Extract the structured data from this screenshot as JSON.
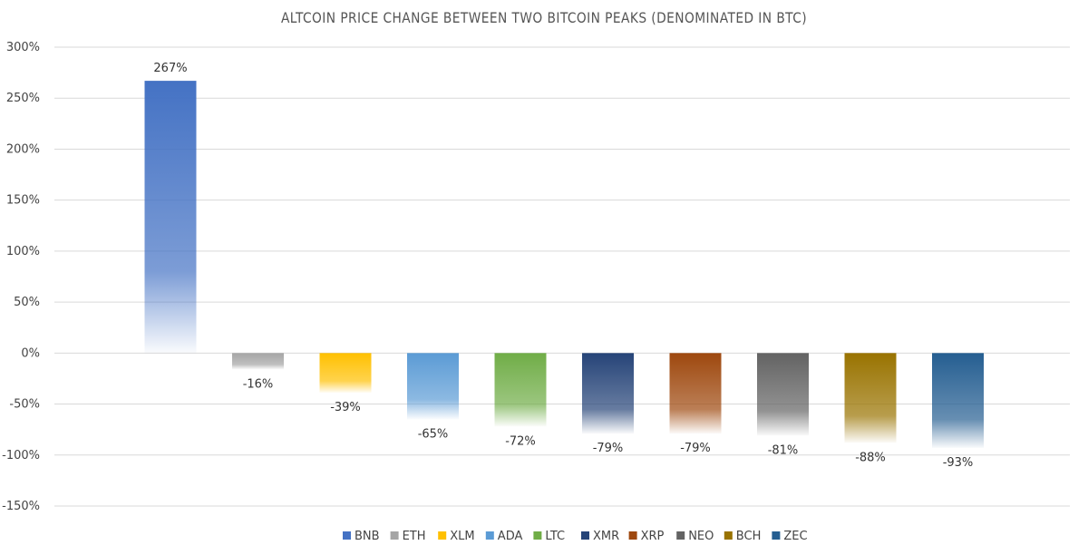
{
  "chart_data": {
    "type": "bar",
    "title": "ALTCOIN PRICE CHANGE BETWEEN TWO BITCOIN PEAKS (DENOMINATED IN BTC)",
    "categories": [
      "BNB",
      "ETH",
      "XLM",
      "ADA",
      "LTC",
      "XMR",
      "XRP",
      "NEO",
      "BCH",
      "ZEC"
    ],
    "values": [
      267,
      -16,
      -39,
      -65,
      -72,
      -79,
      -79,
      -81,
      -88,
      -93
    ],
    "value_labels": [
      "267%",
      "-16%",
      "-39%",
      "-65%",
      "-72%",
      "-79%",
      "-79%",
      "-81%",
      "-88%",
      "-93%"
    ],
    "y_ticks": [
      300,
      250,
      200,
      150,
      100,
      50,
      0,
      -50,
      -100,
      -150
    ],
    "y_tick_labels": [
      "300%",
      "250%",
      "200%",
      "150%",
      "100%",
      "50%",
      "0%",
      "-50%",
      "-100%",
      "-150%"
    ],
    "ylim": [
      -150,
      300
    ],
    "y_unit": "%",
    "grid": true,
    "legend_position": "bottom",
    "colors": [
      "#4472C4",
      "#A5A5A5",
      "#FFC000",
      "#5B9BD5",
      "#70AD47",
      "#264478",
      "#9E480E",
      "#636363",
      "#997300",
      "#255E91"
    ]
  }
}
